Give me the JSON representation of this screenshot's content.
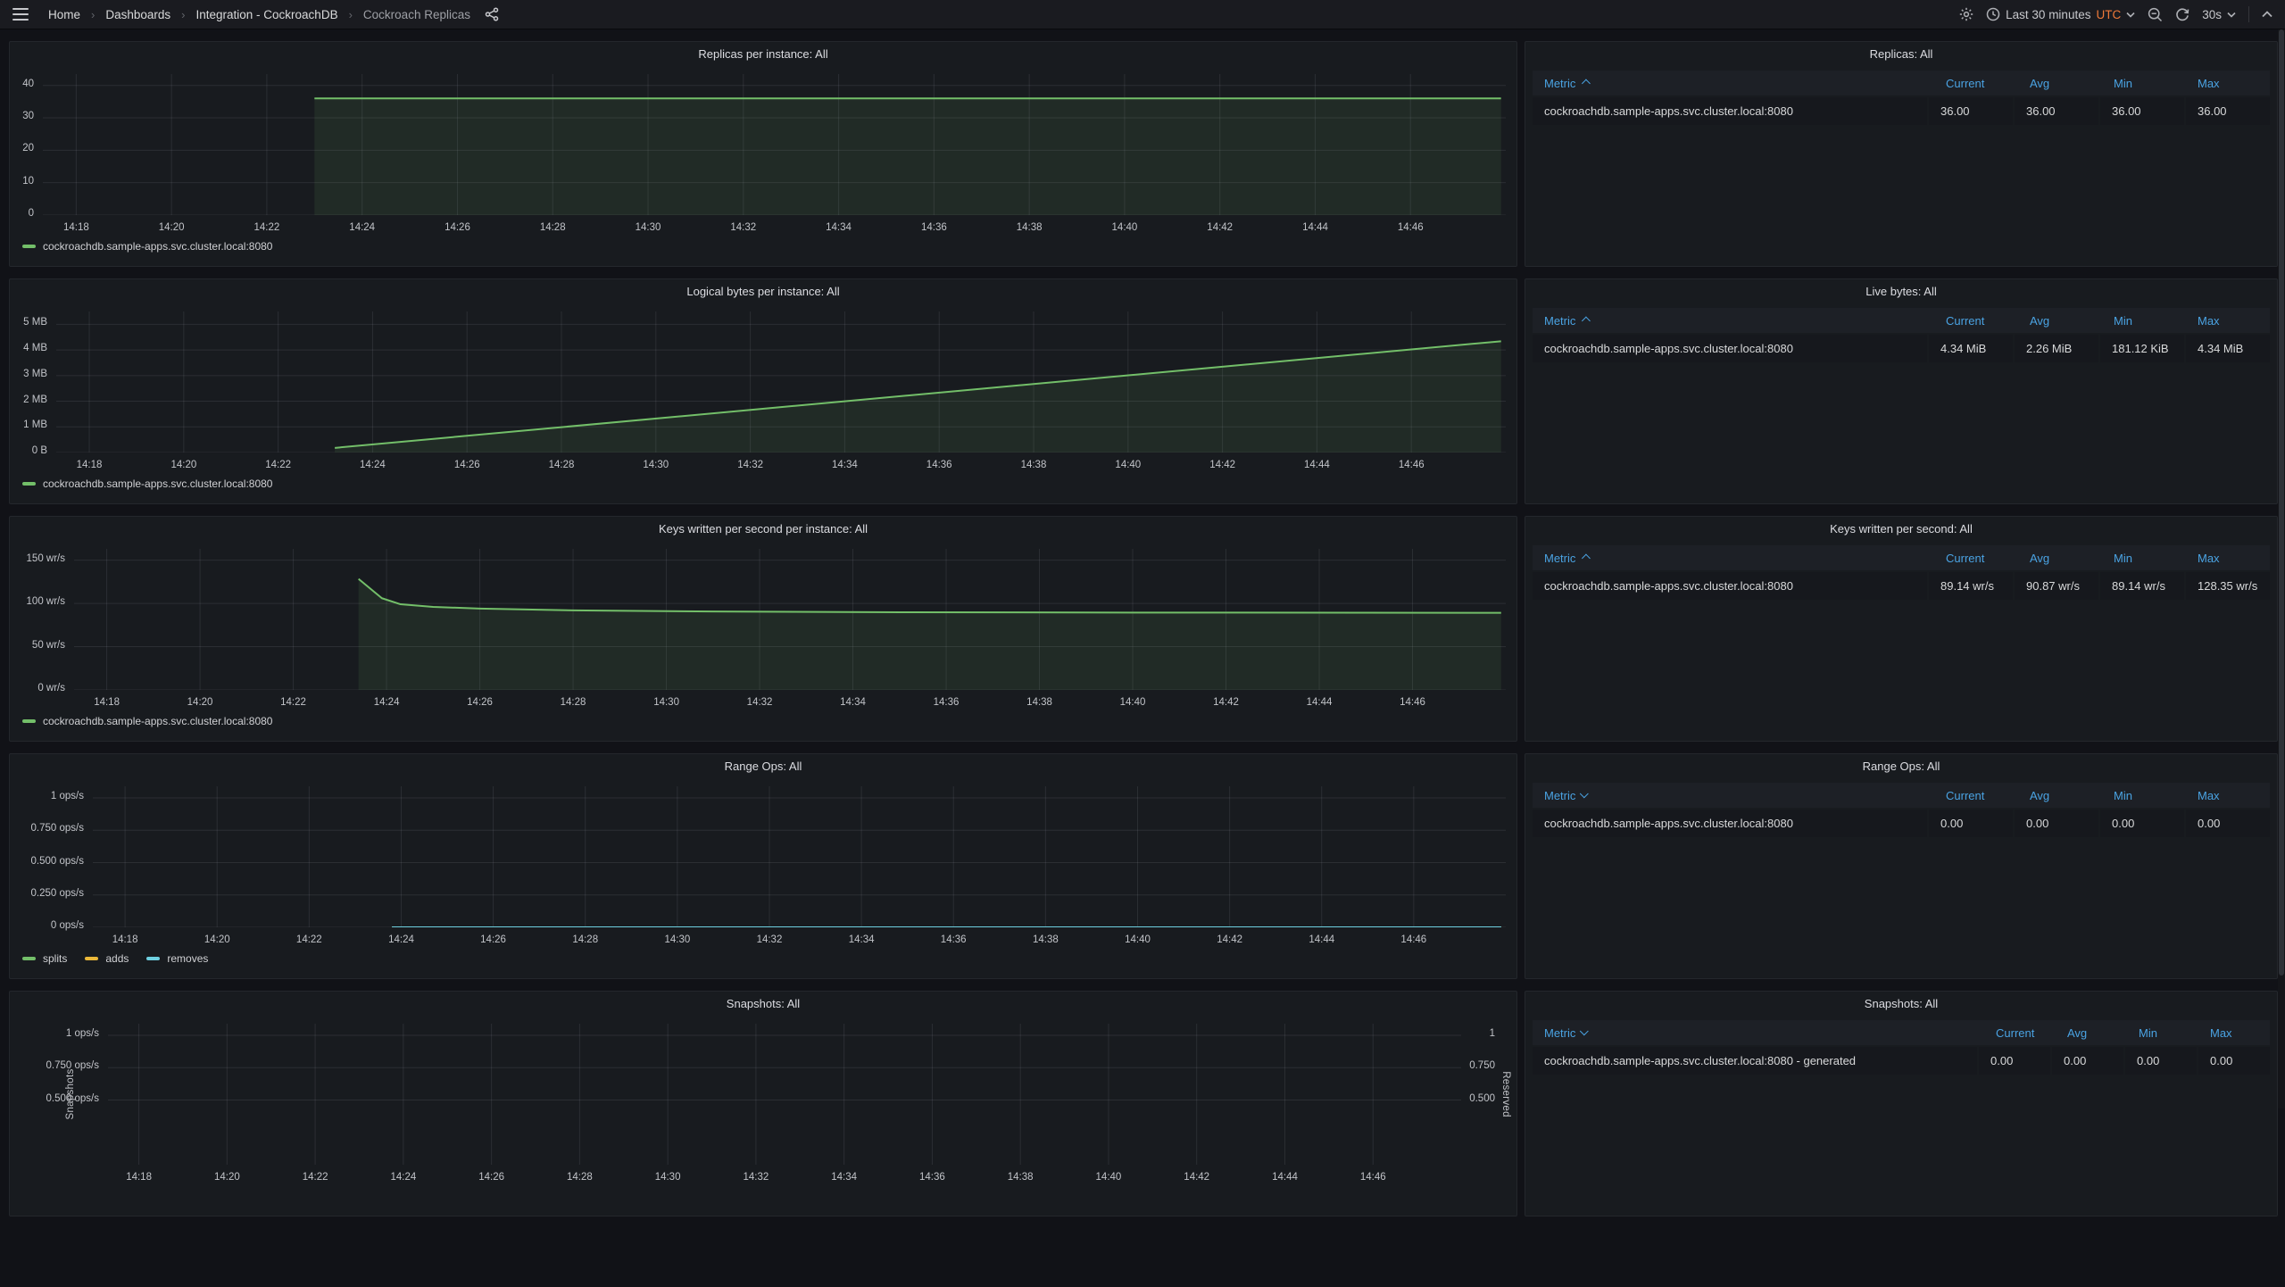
{
  "navbar": {
    "breadcrumbs": [
      "Home",
      "Dashboards",
      "Integration - CockroachDB",
      "Cockroach Replicas"
    ],
    "time_range": "Last 30 minutes",
    "timezone": "UTC",
    "refresh_interval": "30s",
    "icons": {
      "menu": "hamburger",
      "share": "share-nodes",
      "settings": "gear",
      "time_picker": "clock",
      "zoom_out": "magnifier-minus",
      "refresh": "arrows-rotate",
      "collapse": "chevron-up"
    }
  },
  "colors": {
    "green": "#73bf69",
    "yellow": "#eab839",
    "cyan": "#6ed0e0",
    "header_blue": "#4aa3e3",
    "utc_orange": "#ee7939",
    "panel_bg": "#181b1f",
    "page_bg": "#111217"
  },
  "series_label": "cockroachdb.sample-apps.svc.cluster.local:8080",
  "time_axis": {
    "xlim": [
      857.3,
      888.0
    ],
    "ticks": [
      {
        "t": 858,
        "label": "14:18"
      },
      {
        "t": 860,
        "label": "14:20"
      },
      {
        "t": 862,
        "label": "14:22"
      },
      {
        "t": 864,
        "label": "14:24"
      },
      {
        "t": 866,
        "label": "14:26"
      },
      {
        "t": 868,
        "label": "14:28"
      },
      {
        "t": 870,
        "label": "14:30"
      },
      {
        "t": 872,
        "label": "14:32"
      },
      {
        "t": 874,
        "label": "14:34"
      },
      {
        "t": 876,
        "label": "14:36"
      },
      {
        "t": 878,
        "label": "14:38"
      },
      {
        "t": 880,
        "label": "14:40"
      },
      {
        "t": 882,
        "label": "14:42"
      },
      {
        "t": 884,
        "label": "14:44"
      },
      {
        "t": 886,
        "label": "14:46"
      }
    ]
  },
  "chart_data": [
    {
      "type": "line",
      "title": "Replicas per instance: All",
      "ylim": [
        0,
        43.5
      ],
      "y_ticks": [
        {
          "v": 0,
          "label": "0"
        },
        {
          "v": 10,
          "label": "10"
        },
        {
          "v": 20,
          "label": "20"
        },
        {
          "v": 30,
          "label": "30"
        },
        {
          "v": 40,
          "label": "40"
        }
      ],
      "series": [
        {
          "name": "cockroachdb.sample-apps.svc.cluster.local:8080",
          "color": "green",
          "fill": true,
          "points": [
            [
              863,
              36
            ],
            [
              887.9,
              36
            ]
          ]
        }
      ],
      "legend": [
        {
          "color": "green",
          "label": "cockroachdb.sample-apps.svc.cluster.local:8080"
        }
      ]
    },
    {
      "type": "line",
      "title": "Logical bytes per instance: All",
      "ylim": [
        0,
        5.5
      ],
      "y_ticks": [
        {
          "v": 0,
          "label": "0 B"
        },
        {
          "v": 1,
          "label": "1 MB"
        },
        {
          "v": 2,
          "label": "2 MB"
        },
        {
          "v": 3,
          "label": "3 MB"
        },
        {
          "v": 4,
          "label": "4 MB"
        },
        {
          "v": 5,
          "label": "5 MB"
        }
      ],
      "series": [
        {
          "name": "cockroachdb.sample-apps.svc.cluster.local:8080",
          "color": "green",
          "fill": true,
          "points": [
            [
              863.2,
              0.18
            ],
            [
              887.9,
              4.34
            ]
          ]
        }
      ],
      "legend": [
        {
          "color": "green",
          "label": "cockroachdb.sample-apps.svc.cluster.local:8080"
        }
      ]
    },
    {
      "type": "line",
      "title": "Keys written per second per instance: All",
      "ylim": [
        0,
        163
      ],
      "y_ticks": [
        {
          "v": 0,
          "label": "0 wr/s"
        },
        {
          "v": 50,
          "label": "50 wr/s"
        },
        {
          "v": 100,
          "label": "100 wr/s"
        },
        {
          "v": 150,
          "label": "150 wr/s"
        }
      ],
      "series": [
        {
          "name": "cockroachdb.sample-apps.svc.cluster.local:8080",
          "color": "green",
          "fill": true,
          "points": [
            [
              863.4,
              128.35
            ],
            [
              863.9,
              106
            ],
            [
              864.3,
              99
            ],
            [
              865,
              96
            ],
            [
              866,
              94
            ],
            [
              868,
              92
            ],
            [
              871,
              90.6
            ],
            [
              875,
              89.8
            ],
            [
              880,
              89.4
            ],
            [
              887.9,
              89.14
            ]
          ]
        }
      ],
      "legend": [
        {
          "color": "green",
          "label": "cockroachdb.sample-apps.svc.cluster.local:8080"
        }
      ]
    },
    {
      "type": "line",
      "title": "Range Ops: All",
      "ylim": [
        0,
        1.09
      ],
      "y_ticks": [
        {
          "v": 0,
          "label": "0 ops/s"
        },
        {
          "v": 0.25,
          "label": "0.250 ops/s"
        },
        {
          "v": 0.5,
          "label": "0.500 ops/s"
        },
        {
          "v": 0.75,
          "label": "0.750 ops/s"
        },
        {
          "v": 1,
          "label": "1 ops/s"
        }
      ],
      "series": [
        {
          "name": "splits",
          "color": "green",
          "fill": false,
          "points": [
            [
              863.8,
              0
            ],
            [
              887.9,
              0
            ]
          ]
        },
        {
          "name": "adds",
          "color": "yellow",
          "fill": false,
          "points": [
            [
              863.8,
              0
            ],
            [
              887.9,
              0
            ]
          ]
        },
        {
          "name": "removes",
          "color": "cyan",
          "fill": false,
          "points": [
            [
              863.8,
              0
            ],
            [
              887.9,
              0
            ]
          ]
        }
      ],
      "legend": [
        {
          "color": "green",
          "label": "splits"
        },
        {
          "color": "yellow",
          "label": "adds"
        },
        {
          "color": "cyan",
          "label": "removes"
        }
      ]
    },
    {
      "type": "line",
      "title": "Snapshots: All",
      "ylim": [
        0,
        1.09
      ],
      "y_axis_label": "Snapshots",
      "y_ticks": [
        {
          "v": 0.5,
          "label": "0.500 ops/s"
        },
        {
          "v": 0.75,
          "label": "0.750 ops/s"
        },
        {
          "v": 1,
          "label": "1 ops/s"
        }
      ],
      "right_axis": {
        "label": "Reserved",
        "ticks": [
          {
            "v": 0.5,
            "label": "0.500"
          },
          {
            "v": 0.75,
            "label": "0.750"
          },
          {
            "v": 1,
            "label": "1"
          }
        ]
      },
      "series": [],
      "legend": []
    }
  ],
  "tables": [
    {
      "title": "Replicas: All",
      "sort": "asc",
      "columns": [
        "Metric",
        "Current",
        "Avg",
        "Min",
        "Max"
      ],
      "rows": [
        {
          "metric": "cockroachdb.sample-apps.svc.cluster.local:8080",
          "values": [
            "36.00",
            "36.00",
            "36.00",
            "36.00"
          ]
        }
      ]
    },
    {
      "title": "Live bytes: All",
      "sort": "asc",
      "columns": [
        "Metric",
        "Current",
        "Avg",
        "Min",
        "Max"
      ],
      "rows": [
        {
          "metric": "cockroachdb.sample-apps.svc.cluster.local:8080",
          "values": [
            "4.34 MiB",
            "2.26 MiB",
            "181.12 KiB",
            "4.34 MiB"
          ]
        }
      ]
    },
    {
      "title": "Keys written per second: All",
      "sort": "asc",
      "columns": [
        "Metric",
        "Current",
        "Avg",
        "Min",
        "Max"
      ],
      "rows": [
        {
          "metric": "cockroachdb.sample-apps.svc.cluster.local:8080",
          "values": [
            "89.14 wr/s",
            "90.87 wr/s",
            "89.14 wr/s",
            "128.35 wr/s"
          ]
        }
      ]
    },
    {
      "title": "Range Ops: All",
      "sort": "desc",
      "columns": [
        "Metric",
        "Current",
        "Avg",
        "Min",
        "Max"
      ],
      "rows": [
        {
          "metric": "cockroachdb.sample-apps.svc.cluster.local:8080",
          "values": [
            "0.00",
            "0.00",
            "0.00",
            "0.00"
          ]
        }
      ]
    },
    {
      "title": "Snapshots: All",
      "sort": "desc",
      "columns": [
        "Metric",
        "Current",
        "Avg",
        "Min",
        "Max"
      ],
      "rows": [
        {
          "metric": "cockroachdb.sample-apps.svc.cluster.local:8080 - generated",
          "values": [
            "0.00",
            "0.00",
            "0.00",
            "0.00"
          ]
        }
      ]
    }
  ]
}
